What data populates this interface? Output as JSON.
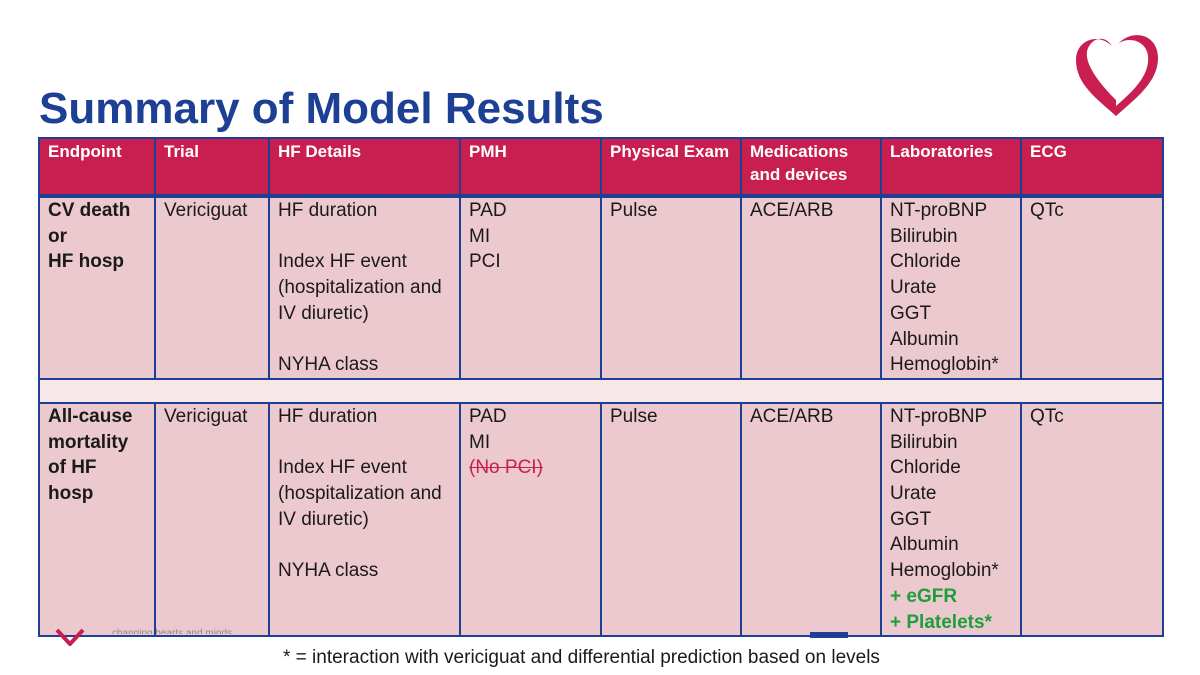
{
  "title": "Summary of Model Results",
  "colors": {
    "title": "#1d3f94",
    "header_bg": "#c81e50",
    "cell_bg": "#ecc9cf",
    "border": "#1d3f94",
    "removed": "#c81e50",
    "added": "#1e9e3a"
  },
  "logo_icon": "heart-ribbon-icon",
  "table": {
    "headers": [
      "Endpoint",
      "Trial",
      "HF Details",
      "PMH",
      "Physical Exam",
      "Medications and devices",
      "Laboratories",
      "ECG"
    ],
    "rows": [
      {
        "endpoint": [
          "CV death",
          "or",
          "HF hosp"
        ],
        "trial": [
          "Vericiguat"
        ],
        "hf_details": [
          "HF duration",
          "",
          "Index HF event",
          "(hospitalization and",
          "IV diuretic)",
          "",
          "NYHA class"
        ],
        "pmh": [
          "PAD",
          "MI",
          "PCI"
        ],
        "physical_exam": [
          "Pulse"
        ],
        "medications": [
          "ACE/ARB"
        ],
        "laboratories": [
          "NT-proBNP",
          "Bilirubin",
          "Chloride",
          "Urate",
          "GGT",
          "Albumin",
          "Hemoglobin*"
        ],
        "ecg": [
          "QTc"
        ]
      },
      {
        "endpoint": [
          "All-cause",
          "mortality",
          "of HF",
          "hosp"
        ],
        "trial": [
          "Vericiguat"
        ],
        "hf_details": [
          "HF duration",
          "",
          "Index HF event",
          "(hospitalization and",
          "IV diuretic)",
          "",
          "NYHA class"
        ],
        "pmh": [
          "PAD",
          "MI",
          "(No PCI)"
        ],
        "physical_exam": [
          "Pulse"
        ],
        "medications": [
          "ACE/ARB"
        ],
        "laboratories": [
          "NT-proBNP",
          "Bilirubin",
          "Chloride",
          "Urate",
          "GGT",
          "Albumin",
          "Hemoglobin*",
          "+ eGFR",
          "+ Platelets*"
        ],
        "ecg": [
          "QTc"
        ]
      }
    ]
  },
  "footer": {
    "tagline": "changing hearts and minds"
  },
  "footnote": "* = interaction with vericiguat and differential prediction based on levels"
}
